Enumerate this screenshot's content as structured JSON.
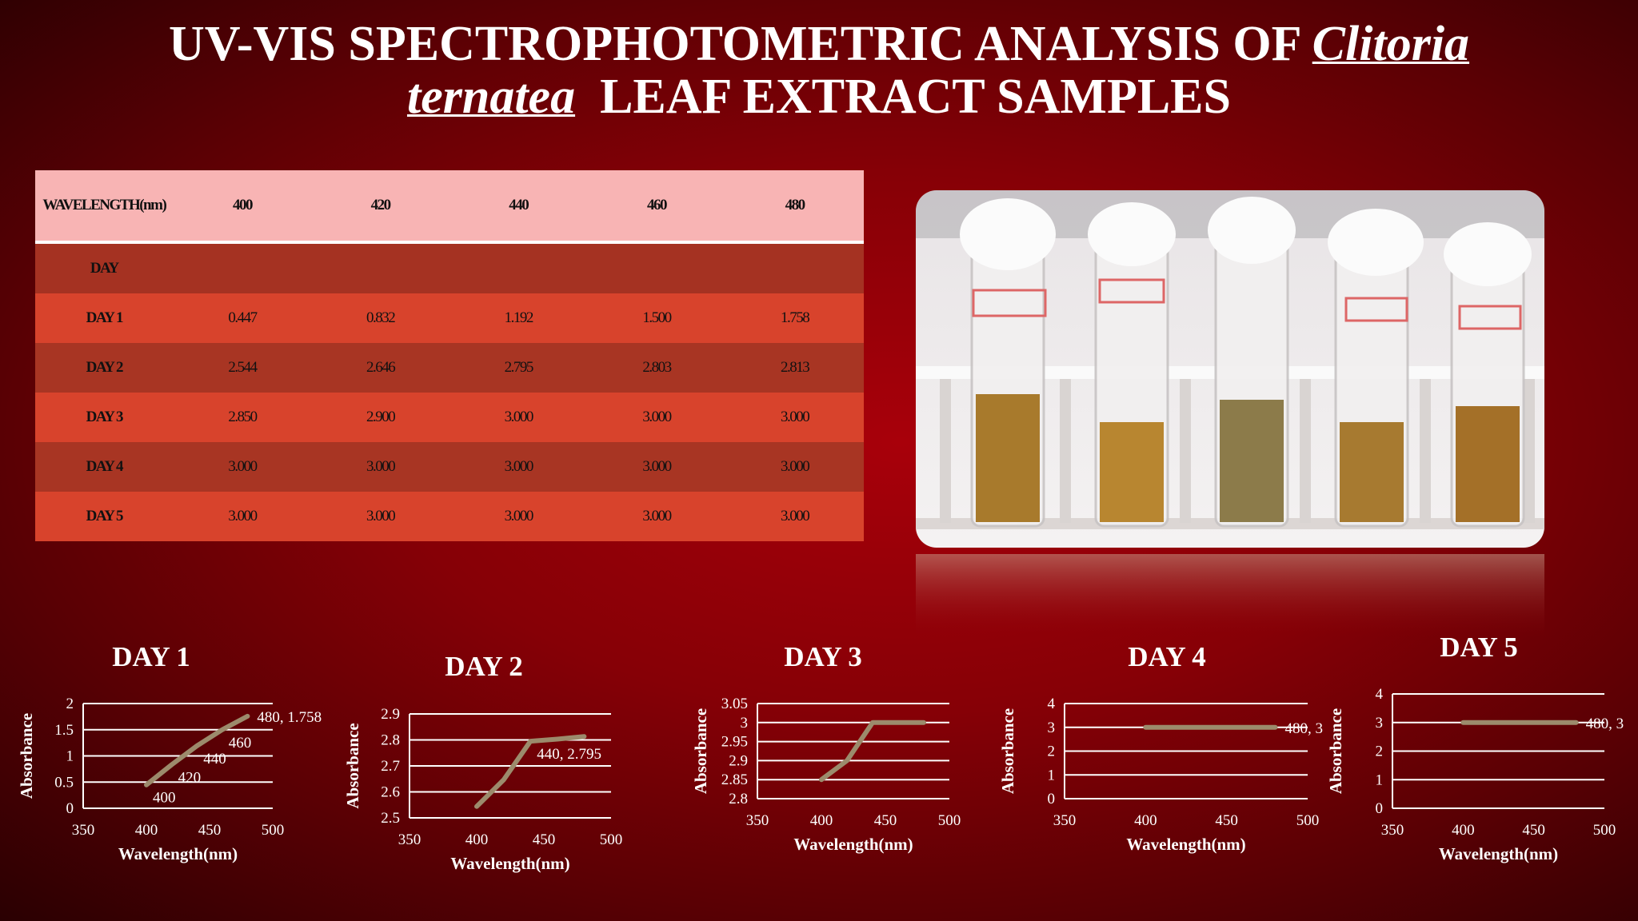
{
  "title": {
    "parts": [
      "UV-VIS SPECTROPHOTOMETRIC ANALYSIS OF",
      "Clitoria",
      "ternatea",
      "LEAF EXTRACT SAMPLES"
    ]
  },
  "table": {
    "header": [
      "WAVELENGTH(nm)",
      "400",
      "420",
      "440",
      "460",
      "480"
    ],
    "subheader": "DAY",
    "rows": [
      [
        "DAY 1",
        "0.447",
        "0.832",
        "1.192",
        "1.500",
        "1.758"
      ],
      [
        "DAY 2",
        "2.544",
        "2.646",
        "2.795",
        "2.803",
        "2.813"
      ],
      [
        "DAY 3",
        "2.850",
        "2.900",
        "3.000",
        "3.000",
        "3.000"
      ],
      [
        "DAY 4",
        "3.000",
        "3.000",
        "3.000",
        "3.000",
        "3.000"
      ],
      [
        "DAY 5",
        "3.000",
        "3.000",
        "3.000",
        "3.000",
        "3.000"
      ]
    ]
  },
  "chart_data": [
    {
      "type": "line",
      "title": "DAY 1",
      "x_label": "Wavelength(nm)",
      "y_label": "Absorbance",
      "x": [
        400,
        420,
        440,
        460,
        480
      ],
      "values": [
        0.447,
        0.832,
        1.192,
        1.5,
        1.758
      ],
      "color": "#9c8b6c",
      "point_labels": [
        "400",
        "420",
        "440",
        "460",
        "480, 1.758"
      ],
      "xlim": [
        350,
        500
      ],
      "xticks": [
        350,
        400,
        450,
        500
      ],
      "ylim": [
        0,
        2
      ],
      "yticks": [
        0,
        0.5,
        1,
        1.5,
        2
      ],
      "grid": true
    },
    {
      "type": "line",
      "title": "DAY 2",
      "x_label": "Wavelength(nm)",
      "y_label": "Absorbance",
      "x": [
        400,
        420,
        440,
        460,
        480
      ],
      "values": [
        2.544,
        2.646,
        2.795,
        2.803,
        2.813
      ],
      "color": "#9c8b6c",
      "point_labels": [
        null,
        null,
        "440, 2.795",
        null,
        null
      ],
      "xlim": [
        350,
        500
      ],
      "xticks": [
        350,
        400,
        450,
        500
      ],
      "ylim": [
        2.5,
        2.9
      ],
      "yticks": [
        2.5,
        2.6,
        2.7,
        2.8,
        2.9
      ],
      "grid": true
    },
    {
      "type": "line",
      "title": "DAY 3",
      "x_label": "Wavelength(nm)",
      "y_label": "Absorbance",
      "x": [
        400,
        420,
        440,
        460,
        480
      ],
      "values": [
        2.85,
        2.9,
        3,
        3,
        3
      ],
      "color": "#9c8b6c",
      "xlim": [
        350,
        500
      ],
      "xticks": [
        350,
        400,
        450,
        500
      ],
      "ylim": [
        2.8,
        3.05
      ],
      "yticks": [
        2.8,
        2.85,
        2.9,
        2.95,
        3,
        3.05
      ],
      "grid": true
    },
    {
      "type": "line",
      "title": "DAY 4",
      "x_label": "Wavelength(nm)",
      "y_label": "Absorbance",
      "x": [
        400,
        420,
        440,
        460,
        480
      ],
      "values": [
        3,
        3,
        3,
        3,
        3
      ],
      "color": "#9c8b6c",
      "point_labels": [
        null,
        null,
        null,
        null,
        "480, 3"
      ],
      "xlim": [
        350,
        500
      ],
      "xticks": [
        350,
        400,
        450,
        500
      ],
      "ylim": [
        0,
        4
      ],
      "yticks": [
        0,
        1,
        2,
        3,
        4
      ],
      "grid": true
    },
    {
      "type": "line",
      "title": "DAY 5",
      "x_label": "Wavelength(nm)",
      "y_label": "Absorbance",
      "x": [
        400,
        420,
        440,
        460,
        480
      ],
      "values": [
        3,
        3,
        3,
        3,
        3
      ],
      "color": "#9c8b6c",
      "point_labels": [
        null,
        null,
        null,
        null,
        "480, 3"
      ],
      "xlim": [
        350,
        500
      ],
      "xticks": [
        350,
        400,
        450,
        500
      ],
      "ylim": [
        0,
        4
      ],
      "yticks": [
        0,
        1,
        2,
        3,
        4
      ],
      "grid": true
    }
  ]
}
